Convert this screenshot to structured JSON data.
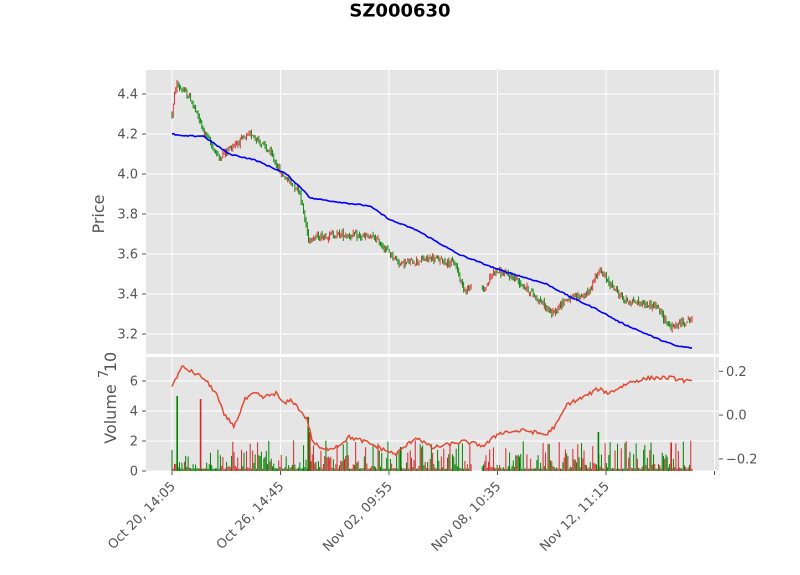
{
  "chart_data": [
    {
      "type": "candlestick",
      "title": "SZ000630",
      "ylabel": "Price",
      "ylim": [
        3.1,
        4.52
      ],
      "yticks": [
        "3.2",
        "3.4",
        "3.6",
        "3.8",
        "4.0",
        "4.2",
        "4.4"
      ],
      "grid": true,
      "up_color": "#d62728",
      "down_color": "#008000",
      "ma_color": "#0000ff",
      "price_anchors": [
        [
          0,
          4.3
        ],
        [
          0.008,
          4.45
        ],
        [
          0.035,
          4.38
        ],
        [
          0.06,
          4.22
        ],
        [
          0.09,
          4.08
        ],
        [
          0.12,
          4.15
        ],
        [
          0.155,
          4.2
        ],
        [
          0.19,
          4.1
        ],
        [
          0.21,
          4.0
        ],
        [
          0.245,
          3.92
        ],
        [
          0.262,
          3.68
        ],
        [
          0.32,
          3.7
        ],
        [
          0.39,
          3.68
        ],
        [
          0.44,
          3.55
        ],
        [
          0.5,
          3.58
        ],
        [
          0.545,
          3.55
        ],
        [
          0.56,
          3.43
        ],
        [
          0.6,
          3.42
        ],
        [
          0.62,
          3.52
        ],
        [
          0.66,
          3.48
        ],
        [
          0.71,
          3.36
        ],
        [
          0.73,
          3.3
        ],
        [
          0.755,
          3.37
        ],
        [
          0.8,
          3.4
        ],
        [
          0.82,
          3.52
        ],
        [
          0.87,
          3.37
        ],
        [
          0.93,
          3.34
        ],
        [
          0.96,
          3.23
        ],
        [
          1.0,
          3.28
        ]
      ],
      "ma_anchors": [
        [
          0,
          4.2
        ],
        [
          0.02,
          4.19
        ],
        [
          0.06,
          4.19
        ],
        [
          0.11,
          4.1
        ],
        [
          0.16,
          4.07
        ],
        [
          0.22,
          4.0
        ],
        [
          0.26,
          3.9
        ],
        [
          0.265,
          3.88
        ],
        [
          0.32,
          3.86
        ],
        [
          0.38,
          3.84
        ],
        [
          0.42,
          3.77
        ],
        [
          0.47,
          3.72
        ],
        [
          0.55,
          3.6
        ],
        [
          0.58,
          3.57
        ],
        [
          0.63,
          3.52
        ],
        [
          0.72,
          3.45
        ],
        [
          0.77,
          3.38
        ],
        [
          0.82,
          3.32
        ],
        [
          0.86,
          3.26
        ],
        [
          0.93,
          3.18
        ],
        [
          0.97,
          3.14
        ],
        [
          1.0,
          3.13
        ]
      ],
      "gaps": [
        [
          0.577,
          0.596
        ]
      ]
    },
    {
      "type": "bar",
      "ylabel": "Volume",
      "y_scale_label": "10",
      "y_scale_exponent": "7",
      "ylim": [
        0,
        7.6
      ],
      "yticks": [
        "0",
        "2",
        "4",
        "6"
      ],
      "grid": true,
      "secondary_axis": {
        "type": "line",
        "color": "#e24a33",
        "ylim": [
          -0.255,
          0.265
        ],
        "yticks": [
          "−0.2",
          "0.0",
          "0.2"
        ],
        "anchors": [
          [
            0,
            0.13
          ],
          [
            0.01,
            0.18
          ],
          [
            0.02,
            0.22
          ],
          [
            0.06,
            0.17
          ],
          [
            0.085,
            0.1
          ],
          [
            0.1,
            0.0
          ],
          [
            0.12,
            -0.05
          ],
          [
            0.14,
            0.07
          ],
          [
            0.16,
            0.1
          ],
          [
            0.175,
            0.08
          ],
          [
            0.2,
            0.1
          ],
          [
            0.215,
            0.05
          ],
          [
            0.23,
            0.07
          ],
          [
            0.26,
            -0.02
          ],
          [
            0.27,
            -0.12
          ],
          [
            0.29,
            -0.16
          ],
          [
            0.32,
            -0.14
          ],
          [
            0.34,
            -0.1
          ],
          [
            0.37,
            -0.12
          ],
          [
            0.4,
            -0.15
          ],
          [
            0.43,
            -0.18
          ],
          [
            0.47,
            -0.1
          ],
          [
            0.5,
            -0.15
          ],
          [
            0.56,
            -0.12
          ],
          [
            0.6,
            -0.14
          ],
          [
            0.63,
            -0.08
          ],
          [
            0.68,
            -0.07
          ],
          [
            0.72,
            -0.09
          ],
          [
            0.74,
            -0.04
          ],
          [
            0.76,
            0.05
          ],
          [
            0.79,
            0.08
          ],
          [
            0.82,
            0.12
          ],
          [
            0.84,
            0.1
          ],
          [
            0.88,
            0.15
          ],
          [
            0.92,
            0.17
          ],
          [
            0.96,
            0.17
          ],
          [
            1.0,
            0.15
          ]
        ]
      },
      "spikes": [
        [
          0.01,
          5.0,
          "down"
        ],
        [
          0.055,
          4.8,
          "up"
        ],
        [
          0.262,
          3.6,
          "down"
        ],
        [
          0.265,
          2.6,
          "up"
        ],
        [
          0.44,
          1.6,
          "down"
        ],
        [
          0.82,
          2.6,
          "down"
        ],
        [
          0.96,
          1.9,
          "up"
        ]
      ]
    }
  ],
  "x_tick_labels": [
    "Oct 20, 14:05",
    "Oct 26, 14:45",
    "Nov 02, 09:55",
    "Nov 08, 10:35",
    "Nov 12, 11:15"
  ]
}
